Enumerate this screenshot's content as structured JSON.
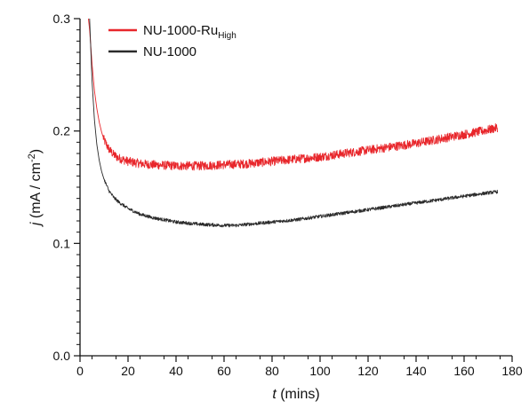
{
  "chart_data": {
    "type": "line",
    "x_label_italic": "t",
    "x_label_rest": " (mins)",
    "y_label_italic": "j",
    "y_label_rest": " (mA / cm",
    "y_label_sup": "-2",
    "y_label_close": ")",
    "xlim": [
      0,
      180
    ],
    "ylim": [
      0.0,
      0.3
    ],
    "x_ticks": [
      "0",
      "20",
      "40",
      "60",
      "80",
      "100",
      "120",
      "140",
      "160",
      "180"
    ],
    "y_ticks": [
      "0.0",
      "0.1",
      "0.2",
      "0.3"
    ],
    "grid": false,
    "legend_position": "top-left",
    "series": [
      {
        "name": "NU-1000-Ru",
        "name_subscript": "High",
        "color": "#e8262b",
        "noise": 0.004,
        "x": [
          3.5,
          4,
          5,
          6,
          7,
          8,
          9,
          10,
          12,
          14,
          16,
          20,
          25,
          30,
          40,
          50,
          60,
          70,
          80,
          90,
          100,
          110,
          120,
          130,
          140,
          150,
          160,
          170,
          174
        ],
        "y": [
          0.3,
          0.29,
          0.26,
          0.236,
          0.22,
          0.208,
          0.199,
          0.192,
          0.184,
          0.179,
          0.176,
          0.173,
          0.171,
          0.17,
          0.169,
          0.169,
          0.17,
          0.171,
          0.173,
          0.175,
          0.177,
          0.18,
          0.183,
          0.186,
          0.189,
          0.193,
          0.197,
          0.201,
          0.203
        ]
      },
      {
        "name": "NU-1000",
        "name_subscript": "",
        "color": "#2b2b2b",
        "noise": 0.0015,
        "x": [
          4,
          5,
          6,
          7,
          8,
          9,
          10,
          12,
          14,
          16,
          20,
          25,
          30,
          40,
          50,
          60,
          65,
          70,
          80,
          90,
          100,
          110,
          120,
          130,
          140,
          150,
          160,
          170,
          174
        ],
        "y": [
          0.3,
          0.245,
          0.21,
          0.188,
          0.174,
          0.164,
          0.157,
          0.147,
          0.141,
          0.137,
          0.131,
          0.126,
          0.123,
          0.119,
          0.117,
          0.116,
          0.116,
          0.117,
          0.119,
          0.121,
          0.124,
          0.127,
          0.13,
          0.133,
          0.136,
          0.139,
          0.142,
          0.145,
          0.146
        ]
      }
    ]
  }
}
